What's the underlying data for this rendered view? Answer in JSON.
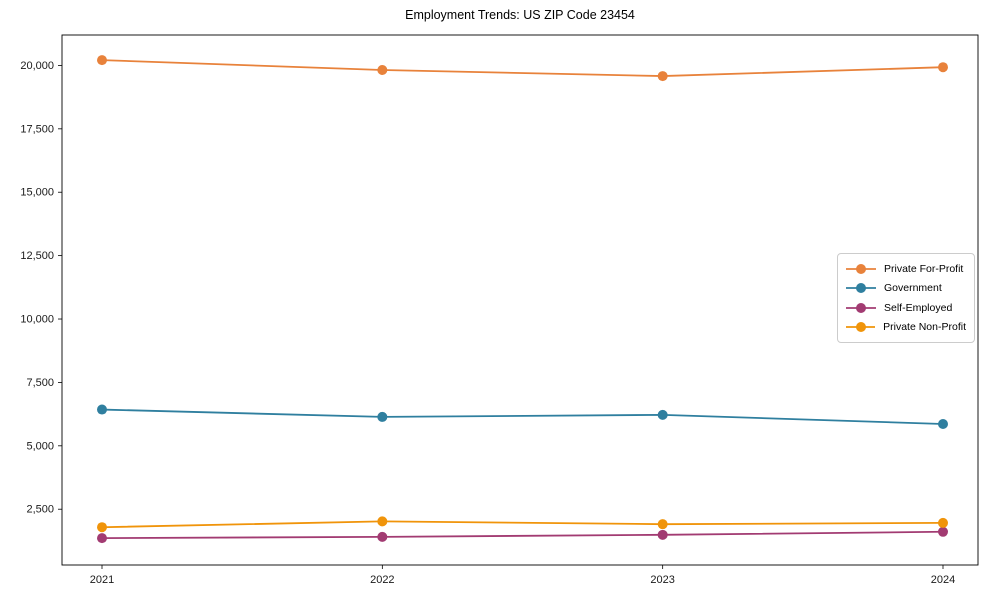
{
  "figure": {
    "title": "Employment Trends: US ZIP Code 23454"
  },
  "chart_data": {
    "type": "line",
    "title": "Employment Trends: US ZIP Code 23454",
    "categories": [
      "2021",
      "2022",
      "2023",
      "2024"
    ],
    "series": [
      {
        "name": "Private For-Profit",
        "color": "#E8823B",
        "values": [
          20210,
          19820,
          19580,
          19930
        ]
      },
      {
        "name": "Government",
        "color": "#2F7F9F",
        "values": [
          6430,
          6140,
          6220,
          5860
        ]
      },
      {
        "name": "Self-Employed",
        "color": "#A23B72",
        "values": [
          1360,
          1410,
          1490,
          1610
        ]
      },
      {
        "name": "Private Non-Profit",
        "color": "#F0940A",
        "values": [
          1790,
          2020,
          1910,
          1960
        ]
      }
    ],
    "xlabel": "",
    "ylabel": "",
    "ylim": [
      300,
      21200
    ],
    "yticks": [
      2500,
      5000,
      7500,
      10000,
      12500,
      15000,
      17500,
      20000
    ],
    "ytick_labels": [
      "2,500",
      "5,000",
      "7,500",
      "10,000",
      "12,500",
      "15,000",
      "17,500",
      "20,000"
    ],
    "grid": false,
    "legend_position": "center right",
    "marker": "circle"
  }
}
